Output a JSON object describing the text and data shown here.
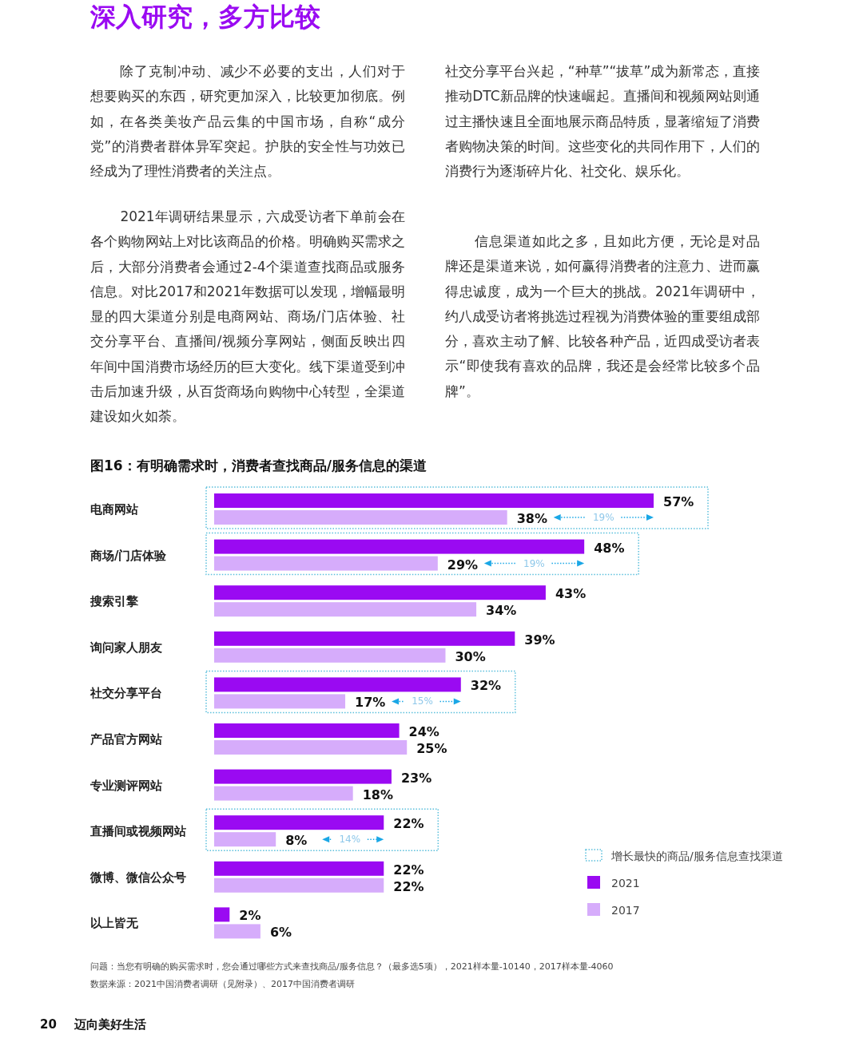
{
  "chart_data": {
    "type": "bar",
    "orientation": "horizontal",
    "title": "深入研究，多方比较",
    "subtitle": "图16：有明确需求时，消费者查找商品/服务信息的渠道",
    "categories": [
      "电商网站",
      "商场/门店体验",
      "搜索引擎",
      "询问家人朋友",
      "社交分享平台",
      "产品官方网站",
      "专业测评网站",
      "直播间或视频网站",
      "微博、微信公众号",
      "以上皆无"
    ],
    "series": [
      {
        "name": "2021",
        "color": "#9a0af2",
        "values": [
          57,
          48,
          43,
          39,
          32,
          24,
          23,
          22,
          22,
          2
        ],
        "value_labels": [
          "57%",
          "48%",
          "43%",
          "39%",
          "32%",
          "24%",
          "23%",
          "22%",
          "22%",
          "2%"
        ]
      },
      {
        "name": "2017",
        "color": "#d6acfb",
        "values": [
          38,
          29,
          34,
          30,
          17,
          25,
          18,
          8,
          22,
          6
        ],
        "value_labels": [
          "38%",
          "29%",
          "34%",
          "30%",
          "17%",
          "25%",
          "18%",
          "8%",
          "22%",
          "6%"
        ]
      }
    ],
    "annotations": [
      "除了克制冲动、减少不必要的支出，人们对于想要购买的东西，研究更加深入，比较更加彻底。例如，在各类美妆产品云集的中国市场，自称“成分党”的消费者群体异军突起。护肤的安全性与功效已经成为了理性消费者的关注点。",
      "2021年调研结果显示，六成受访者下单前会在各个购物网站上对比该商品的价格。明确购买需求之后，大部分消费者会通过2-4个渠道查找商品或服务信息。对比2017和2021年数据可以发现，增幅最明显的四大渠道分别是电商网站、商场/门店体验、社交分享平台、直播间/视频分享网站，侧面反映出四年间中国消费市场经历的巨大变化。线下渠道受到冲击后加速升级，从百货商场向购物中心转型，全渠道建设如火如荼。",
      "社交分享平台兴起，“种草”“拔草”成为新常态，直接推动DTC新品牌的快速崛起。直播间和视频网站则通过主播快速且全面地展示商品特质，显著缩短了消费者购物决策的时间。这些变化的共同作用下，人们的消费行为逐渐碎片化、社交化、娱乐化。",
      "信息渠道如此之多，且如此方便，无论是对品牌还是渠道来说，如何赢得消费者的注意力、进而赢得忠诚度，成为一个巨大的挑战。2021年调研中，约八成受访者将挑选过程视为消费体验的重要组成部分，喜欢主动了解、比较各种产品，近四成受访者表示“即使我有喜欢的品牌，我还是会经常比较多个品牌”。",
      "问题：当您有明确的购买需求时，您会通过哪些方式来查找商品/服务信息？（最多选5项），2021样本量-10140，2017样本量-4060",
      "数据来源：2021中国消费者调研（见附录）、2017中国消费者调研",
      "20",
      "迈向美好生活",
      "增长最快的商品/服务信息查找渠道",
      {
        "text": "19%",
        "x": 50.5,
        "y": "电商网站"
      },
      {
        "text": "19%",
        "x": 41.5,
        "y": "商场/门店体验"
      },
      {
        "text": "15%",
        "x": 27,
        "y": "社交分享平台"
      },
      {
        "text": "14%",
        "x": 17.6,
        "y": "直播间或视频网站"
      }
    ],
    "legend": "bottom right"
  }
}
